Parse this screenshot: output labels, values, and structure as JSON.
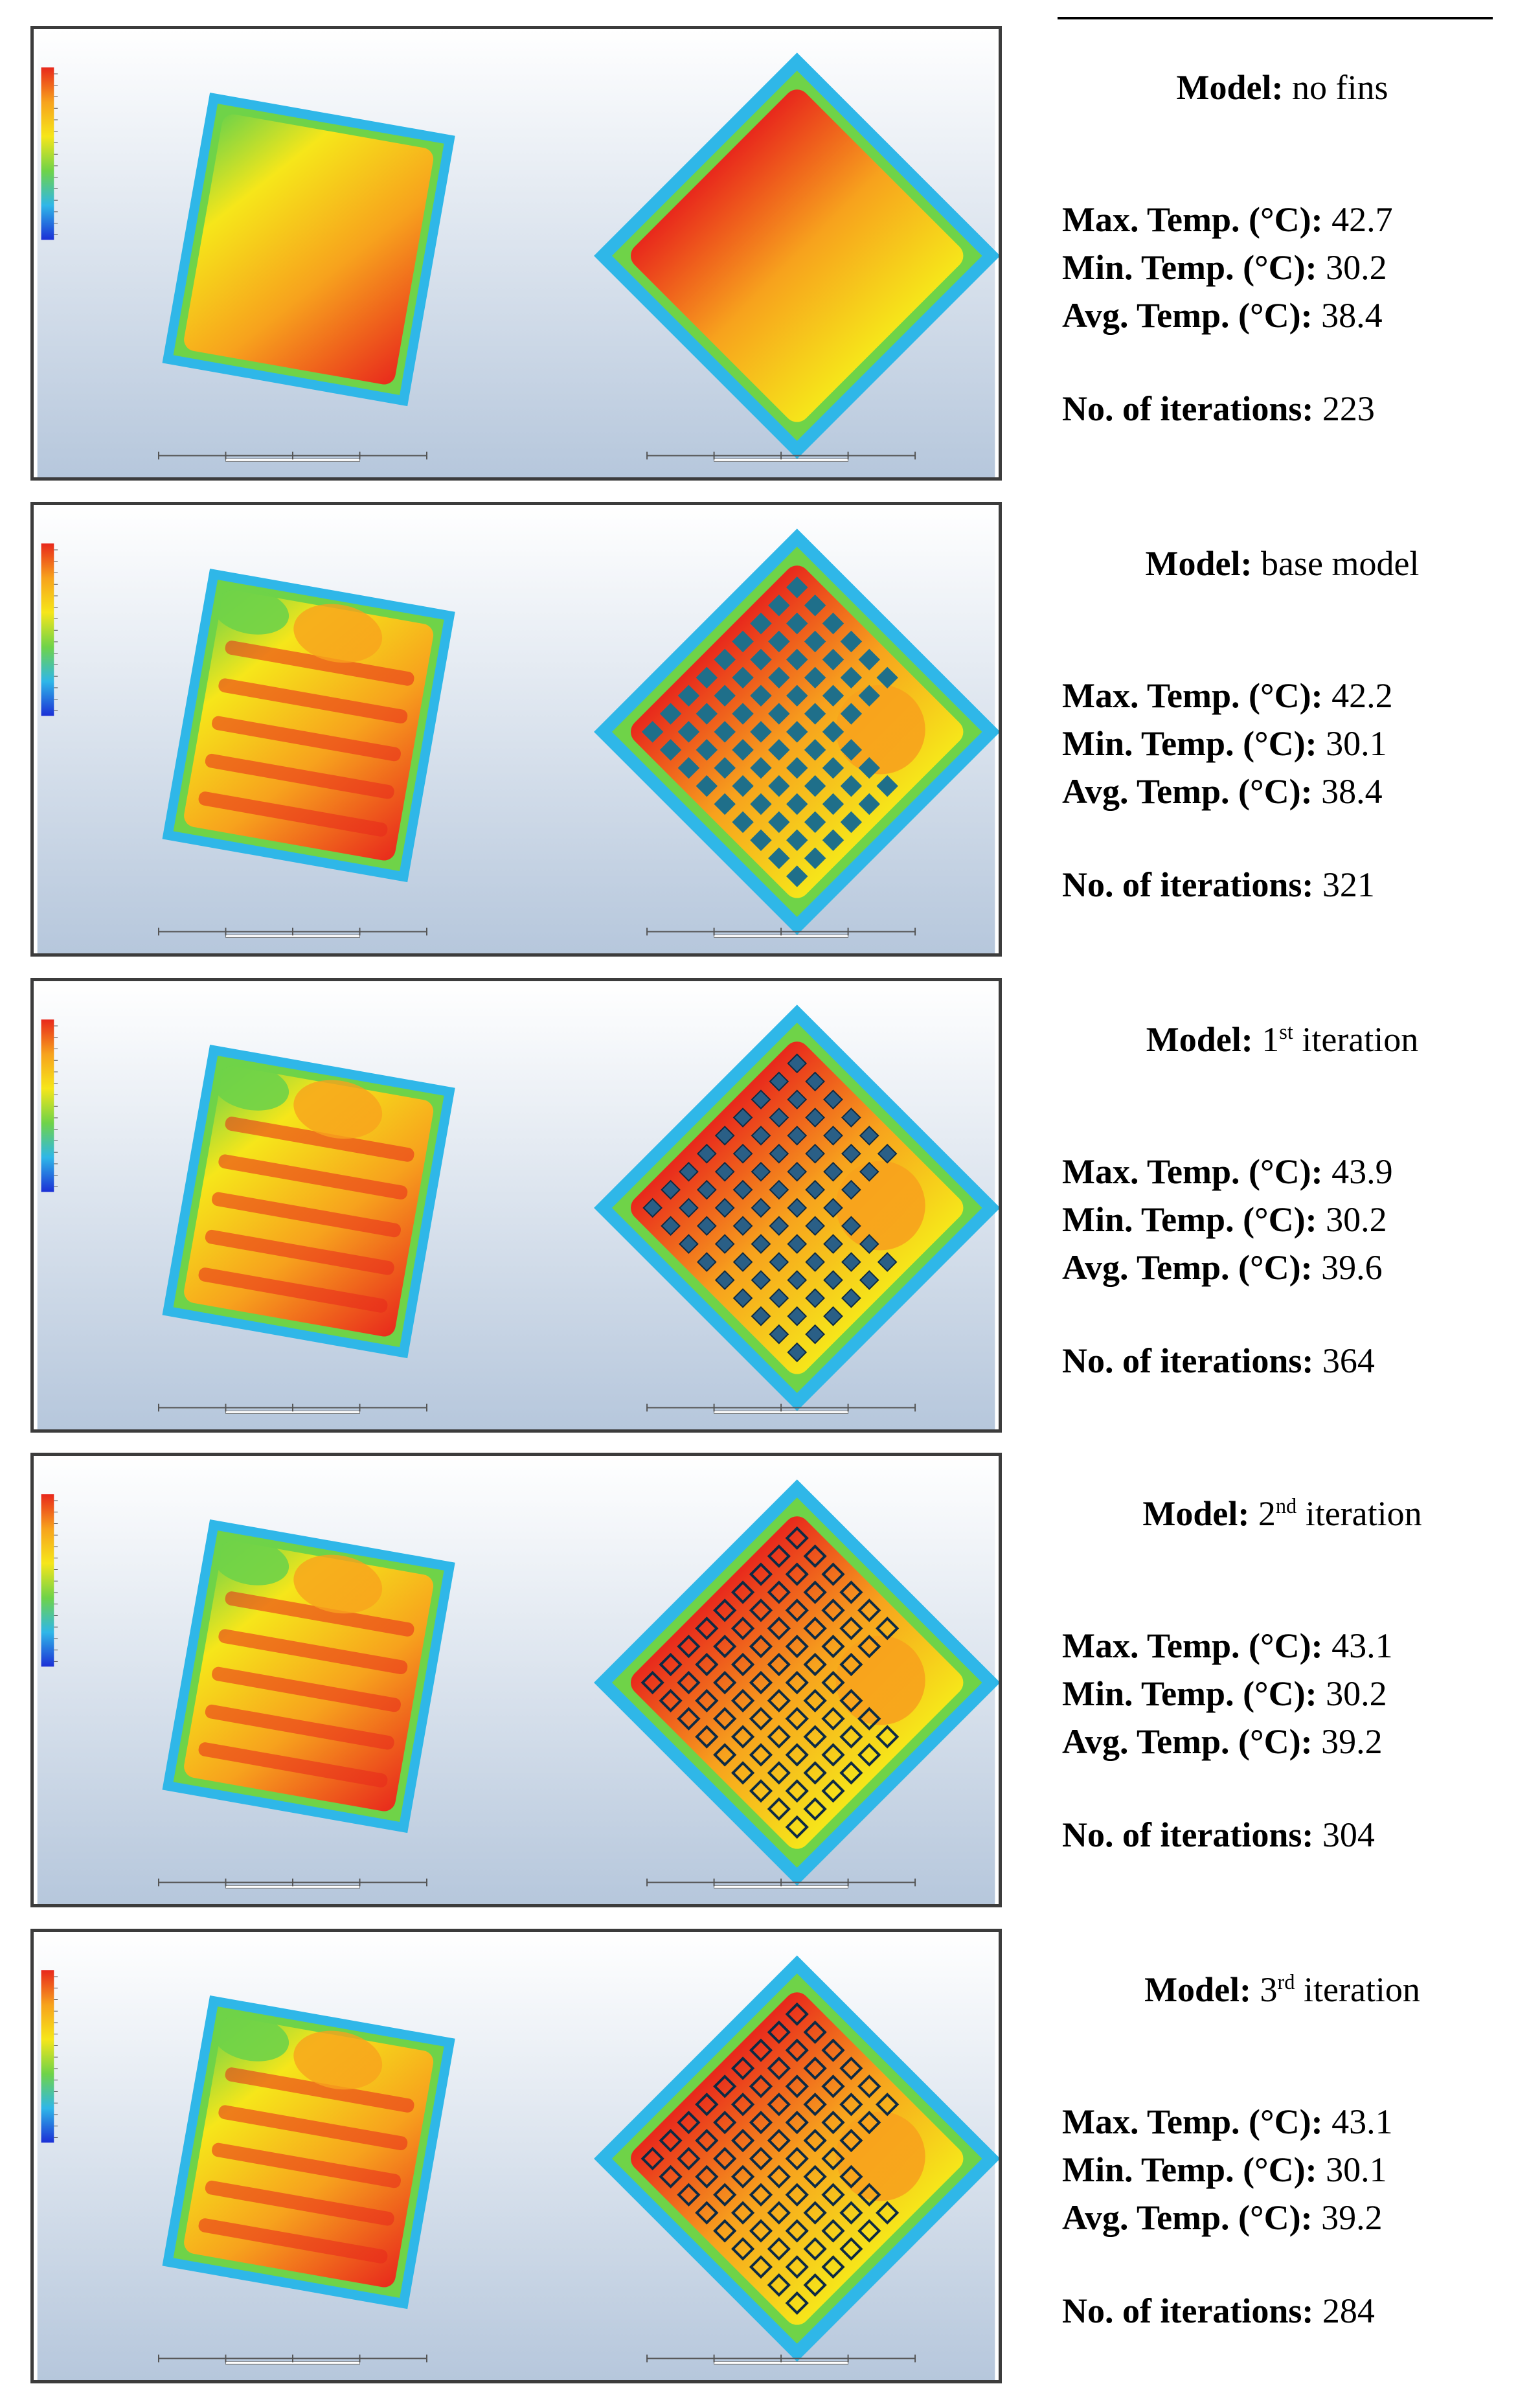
{
  "results": [
    {
      "model_label": "Model:",
      "model_name": "no fins",
      "sup": "",
      "model_rest": "",
      "max_label": "Max. Temp. (°C):",
      "max": "42.7",
      "min_label": "Min. Temp. (°C):",
      "min": "30.2",
      "avg_label": "Avg. Temp. (°C):",
      "avg": "38.4",
      "iter_label": "No. of iterations:",
      "iterations": "223",
      "fins": "none"
    },
    {
      "model_label": "Model:",
      "model_name": "base model",
      "sup": "",
      "model_rest": "",
      "max_label": "Max. Temp. (°C):",
      "max": "42.2",
      "min_label": "Min. Temp. (°C):",
      "min": "30.1",
      "avg_label": "Avg. Temp. (°C):",
      "avg": "38.4",
      "iter_label": "No. of iterations:",
      "iterations": "321",
      "fins": "solid"
    },
    {
      "model_label": "Model:",
      "model_name": "1",
      "sup": "st",
      "model_rest": "iteration",
      "max_label": "Max. Temp. (°C):",
      "max": "43.9",
      "min_label": "Min. Temp. (°C):",
      "min": "30.2",
      "avg_label": "Avg. Temp. (°C):",
      "avg": "39.6",
      "iter_label": "No. of iterations:",
      "iterations": "364",
      "fins": "small"
    },
    {
      "model_label": "Model:",
      "model_name": "2",
      "sup": "nd",
      "model_rest": "iteration",
      "max_label": "Max. Temp. (°C):",
      "max": "43.1",
      "min_label": "Min. Temp. (°C):",
      "min": "30.2",
      "avg_label": "Avg. Temp. (°C):",
      "avg": "39.2",
      "iter_label": "No. of iterations:",
      "iterations": "304",
      "fins": "hollow"
    },
    {
      "model_label": "Model:",
      "model_name": "3",
      "sup": "rd",
      "model_rest": "iteration",
      "max_label": "Max. Temp. (°C):",
      "max": "43.1",
      "min_label": "Min. Temp. (°C):",
      "min": "30.1",
      "avg_label": "Avg. Temp. (°C):",
      "avg": "39.2",
      "iter_label": "No. of iterations:",
      "iterations": "284",
      "fins": "hollow"
    }
  ],
  "colors": {
    "hot": "#e8281c",
    "warm": "#f7a21d",
    "mid": "#f6e61a",
    "cool": "#6fd348",
    "cold": "#2fb7e8",
    "bg_top": "#ffffff",
    "bg_bottom": "#b6c7dc"
  }
}
